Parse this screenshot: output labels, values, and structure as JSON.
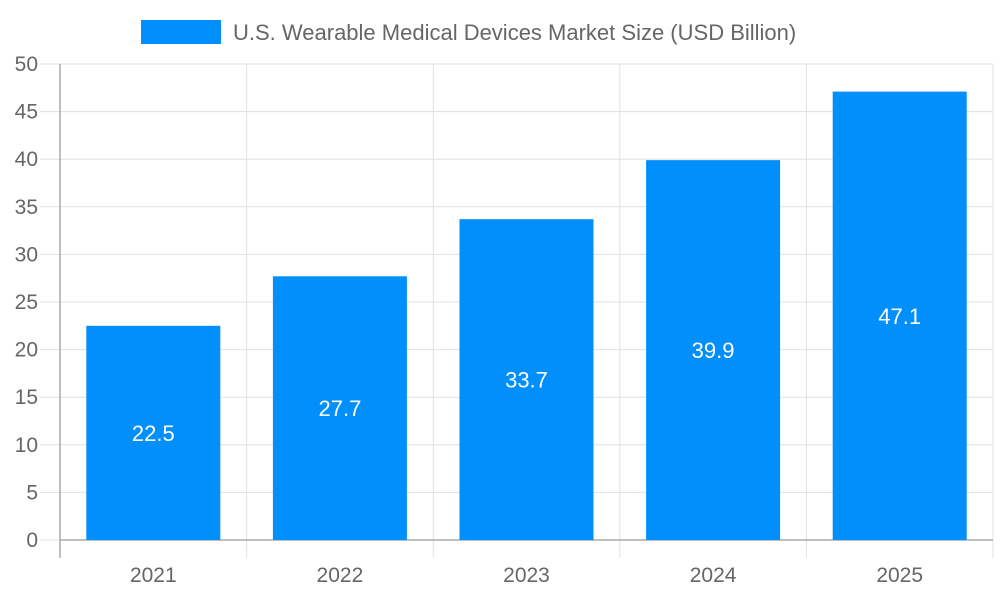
{
  "chart_data": {
    "type": "bar",
    "title": "",
    "legend": {
      "position": "top",
      "entries": [
        "U.S. Wearable Medical Devices Market Size (USD Billion)"
      ]
    },
    "categories": [
      "2021",
      "2022",
      "2023",
      "2024",
      "2025"
    ],
    "series": [
      {
        "name": "U.S. Wearable Medical Devices Market Size (USD Billion)",
        "values": [
          22.5,
          27.7,
          33.7,
          39.9,
          47.1
        ],
        "color": "#008FFB"
      }
    ],
    "data_labels": [
      "22.5",
      "27.7",
      "33.7",
      "39.9",
      "47.1"
    ],
    "yticks": [
      "0",
      "5",
      "10",
      "15",
      "20",
      "25",
      "30",
      "35",
      "40",
      "45",
      "50"
    ],
    "ylim": [
      0,
      50
    ],
    "xlabel": "",
    "ylabel": "",
    "grid": true
  }
}
